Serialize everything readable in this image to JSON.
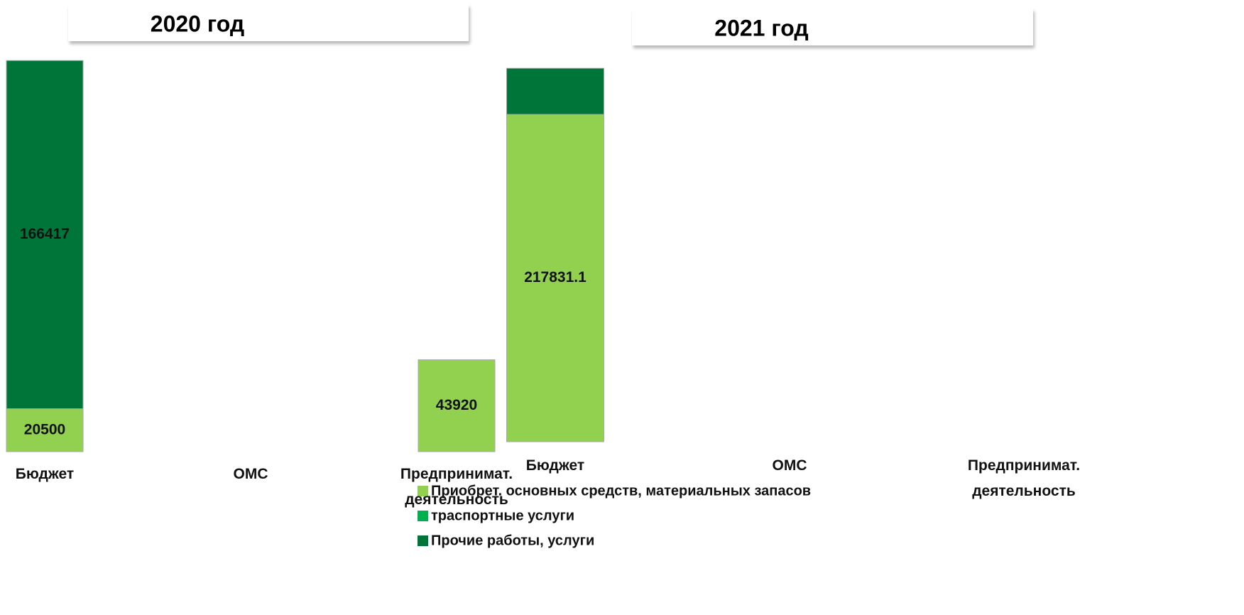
{
  "chart_data": [
    {
      "type": "bar",
      "stacked": true,
      "title": "2020 год",
      "categories": [
        "Бюджет",
        "ОМС",
        "Предпринимат. деятельность"
      ],
      "series": [
        {
          "name": "Приобрет. основных средств, материальных запасов",
          "color": "#92d050",
          "values": [
            20500,
            null,
            43920
          ],
          "value_labels": [
            "20500",
            null,
            "43920"
          ]
        },
        {
          "name": "траспортные услуги",
          "color": "#00b050",
          "values": [
            null,
            null,
            null
          ]
        },
        {
          "name": "Прочие работы, услуги",
          "color": "#00753a",
          "values": [
            166417,
            null,
            null
          ],
          "value_labels": [
            "166417",
            null,
            null
          ]
        }
      ],
      "ylim": [
        0,
        187000
      ],
      "legend": "bottom"
    },
    {
      "type": "bar",
      "stacked": true,
      "title": "2021 год",
      "categories": [
        "Бюджет",
        "ОМС",
        "Предпринимат. деятельность"
      ],
      "series": [
        {
          "color": "#92d050",
          "values": [
            217831.1,
            null,
            null
          ],
          "value_labels": [
            "217831.1",
            null,
            null
          ]
        },
        {
          "color": "#00b050",
          "values": [
            null,
            null,
            null
          ]
        },
        {
          "color": "#00753a",
          "values": [
            30700,
            null,
            null
          ]
        }
      ],
      "ylim": [
        0,
        248600
      ]
    }
  ]
}
